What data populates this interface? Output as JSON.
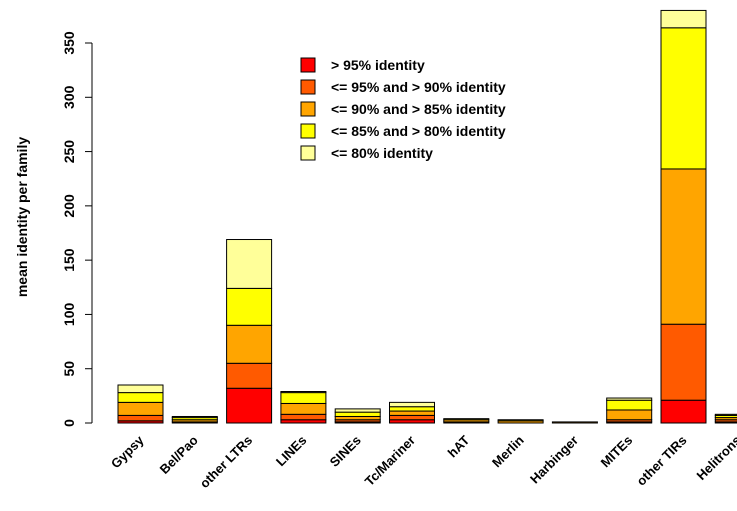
{
  "chart_data": {
    "type": "bar",
    "stacked": true,
    "title": "",
    "xlabel": "",
    "ylabel": "mean identity per family",
    "ylim": [
      0,
      380
    ],
    "yticks": [
      0,
      50,
      100,
      150,
      200,
      250,
      300,
      350
    ],
    "grid": false,
    "legend_position": "top-center",
    "categories": [
      "Gypsy",
      "Bel/Pao",
      "other LTRs",
      "LINEs",
      "SINEs",
      "Tc/Mariner",
      "hAT",
      "Merlin",
      "Harbinger",
      "MITEs",
      "other TIRs",
      "Helitrons"
    ],
    "series": [
      {
        "name": "> 95% identity",
        "color": "#ff0000",
        "values": [
          2,
          0,
          32,
          3,
          1,
          3,
          0,
          0,
          0,
          1,
          21,
          1
        ]
      },
      {
        "name": "<= 95% and > 90% identity",
        "color": "#ff5a00",
        "values": [
          5,
          1,
          23,
          5,
          2,
          4,
          1,
          0,
          0,
          2,
          70,
          2
        ]
      },
      {
        "name": "<= 90% and > 85% identity",
        "color": "#ffa500",
        "values": [
          12,
          2,
          35,
          10,
          3,
          4,
          2,
          2,
          1,
          9,
          143,
          2
        ]
      },
      {
        "name": "<= 85% and > 80% identity",
        "color": "#ffff00",
        "values": [
          9,
          2,
          34,
          10,
          4,
          4,
          1,
          1,
          0,
          9,
          130,
          2
        ]
      },
      {
        "name": "<= 80% identity",
        "color": "#ffff99",
        "values": [
          7,
          1,
          45,
          1,
          3,
          4,
          0,
          0,
          0,
          2,
          16,
          1
        ]
      }
    ]
  }
}
